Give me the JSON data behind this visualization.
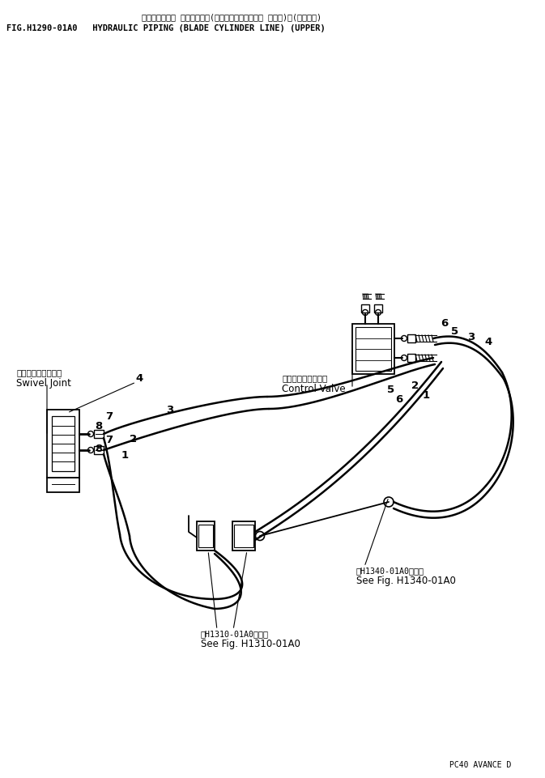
{
  "title_jp": "ハイドロリック パイピング　(ブレード　シリンダ・ ライン)　(アッパー)",
  "title_en": "FIG.H1290-01A0   HYDRAULIC PIPING (BLADE CYLINDER LINE) (UPPER)",
  "footer": "PC40 AVANCE D",
  "bg": "#ffffff",
  "lc": "#000000",
  "label_swivel_jp": "スイベルジョイント",
  "label_swivel_en": "Swivel Joint",
  "label_control_jp": "コントロールバルブ",
  "label_control_en": "Control Valve",
  "ref1_jp": "冗H1310-01A0図参照",
  "ref1_en": "See Fig. H1310-01A0",
  "ref2_jp": "冗H1340-01A0図参照",
  "ref2_en": "See Fig. H1340-01A0"
}
